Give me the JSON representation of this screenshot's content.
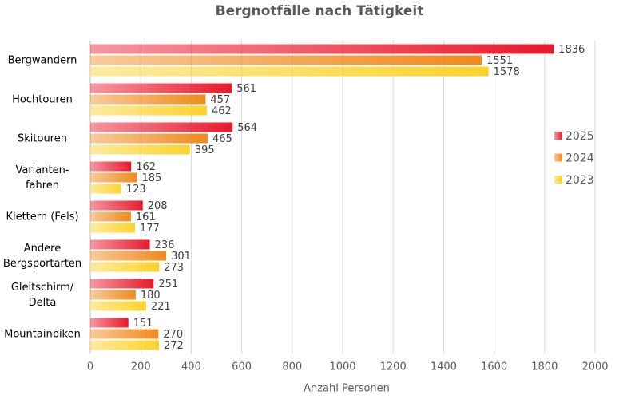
{
  "chart_data": {
    "type": "bar",
    "orientation": "horizontal",
    "title": "Bergnotfälle nach Tätigkeit",
    "x_label": "Anzahl Personen",
    "categories": [
      "Bergwandern",
      "Hochtouren",
      "Skitouren",
      "Varianten-\nfahren",
      "Klettern (Fels)",
      "Andere\nBergsportarten",
      "Gleitschirm/\nDelta",
      "Mountainbiken"
    ],
    "series": [
      {
        "name": "2025",
        "color": "#e8192c",
        "values": [
          1836,
          561,
          564,
          162,
          208,
          236,
          251,
          151
        ]
      },
      {
        "name": "2024",
        "color": "#ef8a1d",
        "values": [
          1551,
          457,
          465,
          185,
          161,
          301,
          180,
          270
        ]
      },
      {
        "name": "2023",
        "color": "#fdd22b",
        "values": [
          1578,
          462,
          395,
          123,
          177,
          273,
          221,
          272
        ]
      }
    ],
    "xlim": [
      0,
      2000
    ],
    "xticks": [
      0,
      200,
      400,
      600,
      800,
      1000,
      1200,
      1400,
      1600,
      1800,
      2000
    ],
    "grid": true,
    "legend": "right"
  }
}
